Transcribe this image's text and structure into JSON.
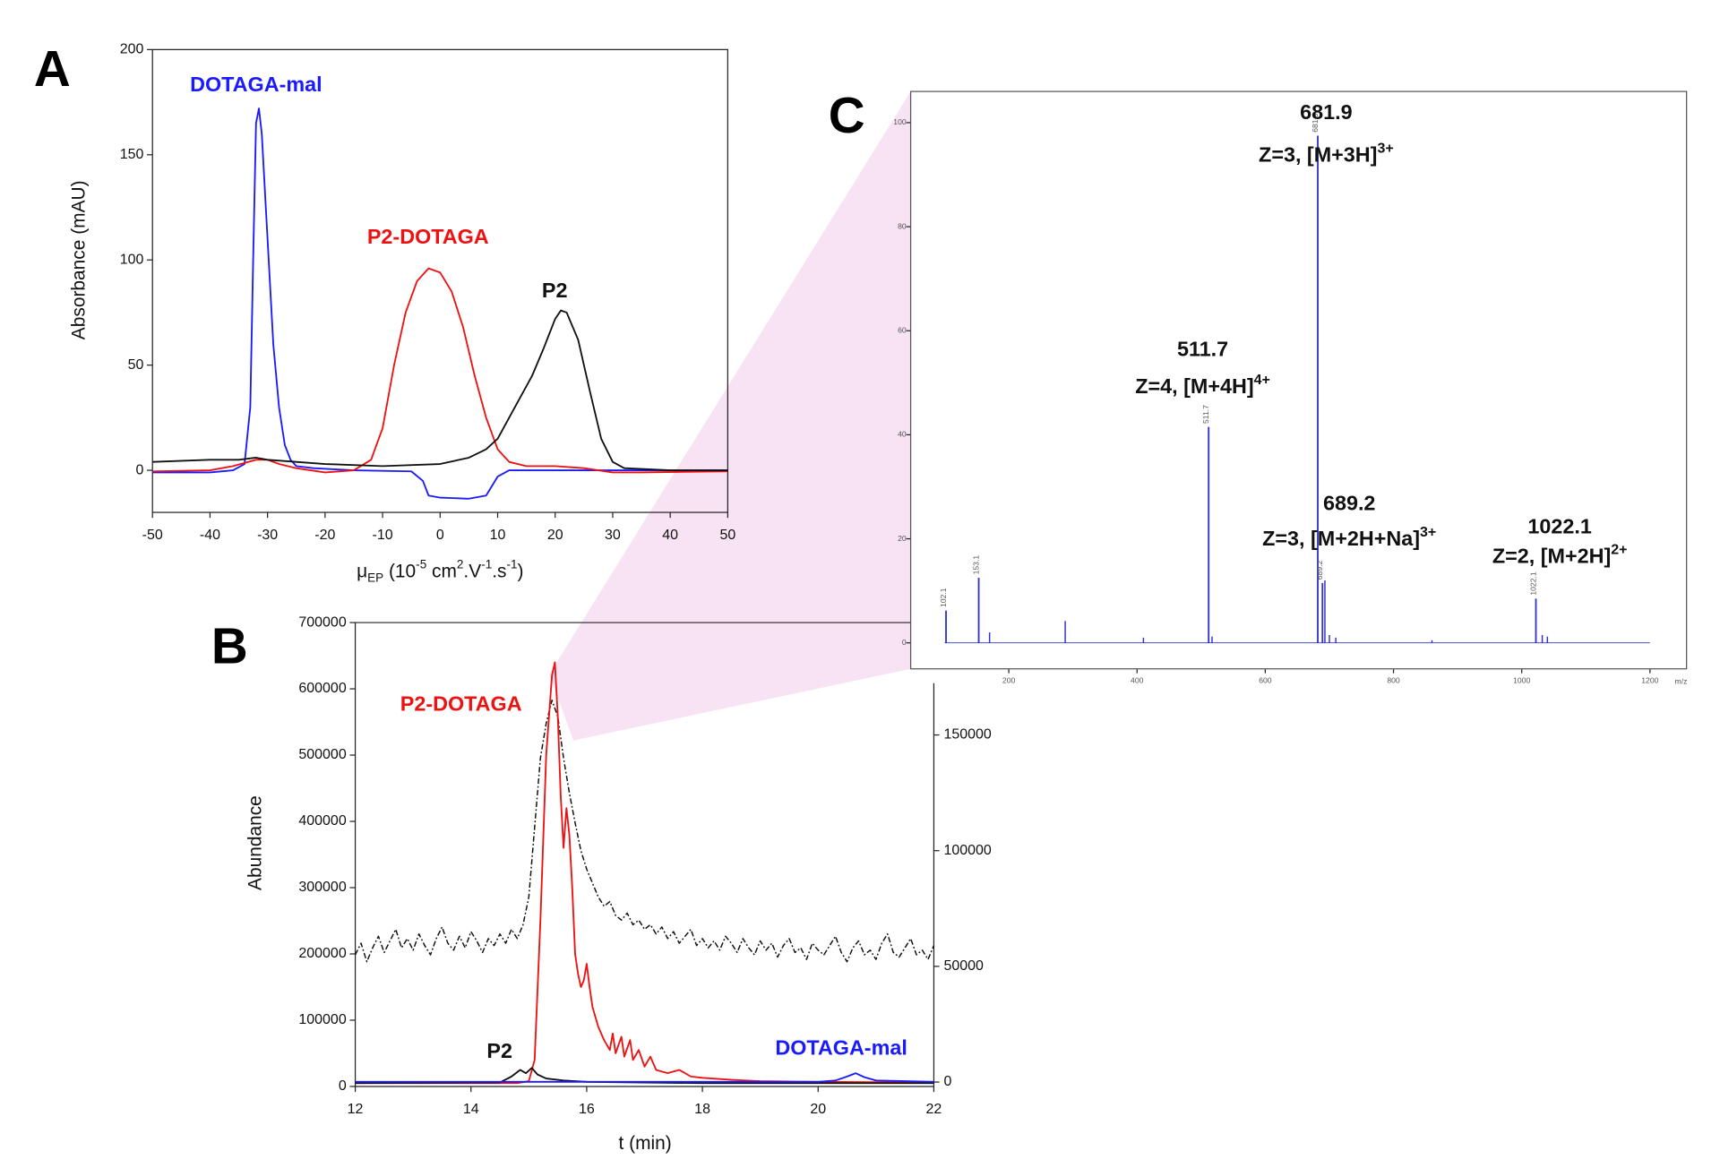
{
  "chart_data": [
    {
      "type": "line",
      "panel": "A",
      "ylabel": "Absorbance (mAU)",
      "xlabel": [
        {
          "text": "μ"
        },
        {
          "text": "EP",
          "script": "sub"
        },
        {
          "text": " (10"
        },
        {
          "text": "-5",
          "script": "super"
        },
        {
          "text": " cm"
        },
        {
          "text": "2",
          "script": "super"
        },
        {
          "text": ".V"
        },
        {
          "text": "-1",
          "script": "super"
        },
        {
          "text": ".s"
        },
        {
          "text": "-1",
          "script": "super"
        },
        {
          "text": ")"
        }
      ],
      "xlim": [
        -50,
        50
      ],
      "xticks": [
        -50,
        -40,
        -30,
        -20,
        -10,
        0,
        10,
        20,
        30,
        40,
        50
      ],
      "ylim": [
        -20,
        200
      ],
      "yticks": [
        0,
        50,
        100,
        150,
        200
      ],
      "series": [
        {
          "name": "DOTAGA-mal",
          "color": "#1a1aff",
          "x": [
            -50,
            -40,
            -36,
            -34,
            -33,
            -32.5,
            -32,
            -31.5,
            -31,
            -30,
            -29,
            -28,
            -27,
            -26,
            -25,
            -22,
            -15,
            -5,
            -3,
            -2,
            0,
            5,
            8,
            10,
            12,
            20,
            50
          ],
          "values": [
            -1,
            -1,
            0,
            3,
            30,
            100,
            165,
            172,
            160,
            110,
            60,
            30,
            12,
            5,
            2,
            1,
            0,
            -0.5,
            -5,
            -12,
            -13,
            -13.5,
            -12,
            -3,
            0,
            0,
            0
          ]
        },
        {
          "name": "P2-DOTAGA",
          "color": "#ee1111",
          "x": [
            -50,
            -40,
            -36,
            -32,
            -30,
            -28,
            -25,
            -20,
            -15,
            -12,
            -10,
            -8,
            -6,
            -4,
            -2,
            0,
            2,
            4,
            6,
            8,
            10,
            12,
            15,
            20,
            25,
            30,
            35,
            50
          ],
          "values": [
            -0.5,
            0,
            2,
            5,
            5,
            3,
            1,
            -1,
            0,
            5,
            20,
            50,
            75,
            90,
            96,
            94,
            85,
            68,
            45,
            25,
            10,
            4,
            2,
            2,
            1,
            -1,
            -1,
            -0.5
          ]
        },
        {
          "name": "P2",
          "color": "#111111",
          "x": [
            -50,
            -40,
            -35,
            -32,
            -30,
            -25,
            -20,
            -10,
            0,
            5,
            8,
            10,
            12,
            14,
            16,
            18,
            20,
            21,
            22,
            24,
            26,
            28,
            30,
            32,
            40,
            50
          ],
          "values": [
            4,
            5,
            5,
            6,
            5,
            4,
            3,
            2,
            3,
            6,
            10,
            15,
            25,
            35,
            45,
            58,
            72,
            76,
            75,
            62,
            38,
            15,
            4,
            1,
            0,
            0
          ]
        }
      ]
    },
    {
      "type": "line",
      "panel": "B",
      "ylabel": "Abundance",
      "xlabel": [
        {
          "text": "t (min)"
        }
      ],
      "xlim": [
        12,
        22
      ],
      "xticks": [
        12,
        14,
        16,
        18,
        20,
        22
      ],
      "ylim": [
        0,
        700000
      ],
      "yticks": [
        0,
        100000,
        200000,
        300000,
        400000,
        500000,
        600000,
        700000
      ],
      "y2lim": [
        0,
        200000
      ],
      "y2ticks": [
        0,
        50000,
        100000,
        150000
      ],
      "series": [
        {
          "color": "#111111",
          "axis": "y2",
          "linestyle": "dashdot",
          "x": [
            12.0,
            12.1,
            12.2,
            12.3,
            12.4,
            12.5,
            12.6,
            12.7,
            12.8,
            12.9,
            13.0,
            13.1,
            13.2,
            13.3,
            13.4,
            13.5,
            13.6,
            13.7,
            13.8,
            13.9,
            14.0,
            14.1,
            14.2,
            14.3,
            14.4,
            14.5,
            14.6,
            14.7,
            14.8,
            14.9,
            15.0,
            15.1,
            15.2,
            15.3,
            15.4,
            15.5,
            15.6,
            15.7,
            15.8,
            15.9,
            16.0,
            16.1,
            16.2,
            16.3,
            16.4,
            16.5,
            16.6,
            16.7,
            16.8,
            16.9,
            17.0,
            17.1,
            17.2,
            17.3,
            17.4,
            17.5,
            17.6,
            17.7,
            17.8,
            17.9,
            18.0,
            18.1,
            18.2,
            18.3,
            18.4,
            18.5,
            18.6,
            18.7,
            18.8,
            18.9,
            19.0,
            19.1,
            19.2,
            19.3,
            19.4,
            19.5,
            19.6,
            19.7,
            19.8,
            19.9,
            20.0,
            20.1,
            20.2,
            20.3,
            20.4,
            20.5,
            20.6,
            20.7,
            20.8,
            20.9,
            21.0,
            21.1,
            21.2,
            21.3,
            21.4,
            21.5,
            21.6,
            21.7,
            21.8,
            21.9,
            22.0
          ],
          "values": [
            55000,
            60000,
            52000,
            58000,
            63000,
            56000,
            61000,
            66000,
            58000,
            62000,
            57000,
            64000,
            59000,
            55000,
            62000,
            67000,
            60000,
            57000,
            63000,
            58000,
            65000,
            61000,
            56000,
            62000,
            59000,
            64000,
            60000,
            66000,
            62000,
            68000,
            80000,
            110000,
            140000,
            155000,
            165000,
            158000,
            140000,
            125000,
            112000,
            100000,
            92000,
            86000,
            80000,
            76000,
            78000,
            72000,
            70000,
            73000,
            68000,
            70000,
            66000,
            68000,
            64000,
            67000,
            62000,
            65000,
            60000,
            63000,
            66000,
            59000,
            62000,
            58000,
            61000,
            57000,
            63000,
            60000,
            56000,
            62000,
            58000,
            55000,
            61000,
            57000,
            60000,
            54000,
            59000,
            62000,
            56000,
            58000,
            53000,
            60000,
            57000,
            55000,
            59000,
            63000,
            56000,
            52000,
            58000,
            61000,
            55000,
            57000,
            53000,
            60000,
            64000,
            56000,
            54000,
            58000,
            62000,
            55000,
            57000,
            53000,
            59000
          ]
        },
        {
          "name": "P2-DOTAGA",
          "color": "#ee1111",
          "x": [
            12,
            14,
            14.8,
            15.0,
            15.1,
            15.2,
            15.3,
            15.4,
            15.45,
            15.5,
            15.55,
            15.6,
            15.65,
            15.7,
            15.75,
            15.8,
            15.85,
            15.9,
            15.95,
            16.0,
            16.05,
            16.1,
            16.2,
            16.3,
            16.4,
            16.45,
            16.5,
            16.6,
            16.65,
            16.75,
            16.8,
            16.9,
            17.0,
            17.1,
            17.2,
            17.4,
            17.6,
            17.8,
            18.0,
            18.5,
            19,
            20,
            22
          ],
          "values": [
            5000,
            5000,
            5000,
            8000,
            40000,
            250000,
            500000,
            620000,
            640000,
            560000,
            440000,
            360000,
            420000,
            380000,
            300000,
            200000,
            170000,
            150000,
            160000,
            185000,
            150000,
            120000,
            90000,
            70000,
            55000,
            80000,
            50000,
            75000,
            45000,
            70000,
            40000,
            55000,
            30000,
            45000,
            25000,
            20000,
            25000,
            15000,
            13000,
            10000,
            8000,
            7000,
            6000
          ]
        },
        {
          "name": "P2",
          "color": "#111111",
          "x": [
            12,
            14.5,
            14.7,
            14.85,
            14.95,
            15.05,
            15.15,
            15.3,
            15.6,
            16,
            18,
            22
          ],
          "values": [
            5000,
            6000,
            15000,
            25000,
            20000,
            28000,
            18000,
            12000,
            9000,
            7000,
            5000,
            5000
          ]
        },
        {
          "name": "DOTAGA-mal",
          "color": "#1a1aff",
          "x": [
            12,
            20,
            20.3,
            20.5,
            20.65,
            20.8,
            21,
            22
          ],
          "values": [
            7000,
            7000,
            9000,
            15000,
            20000,
            14000,
            9000,
            7000
          ]
        }
      ]
    },
    {
      "type": "stem",
      "panel": "C",
      "color": "#3333cc",
      "xlabel": [
        {
          "text": "m/z"
        }
      ],
      "xlim": [
        47,
        1257
      ],
      "xticks": [
        200,
        400,
        600,
        800,
        1000,
        1200
      ],
      "ylim": [
        -5,
        106
      ],
      "yticks": [
        0,
        20,
        40,
        60,
        80,
        100
      ],
      "peaks": {
        "x": [
          102.1,
          153.1,
          511.7,
          681.9,
          689.2,
          1022.1
        ],
        "values": [
          6.2,
          12.5,
          41.5,
          97.5,
          11.5,
          8.5
        ]
      },
      "minor_peaks": {
        "x": [
          170,
          288,
          410,
          517,
          693,
          700,
          710,
          860,
          1032,
          1040
        ],
        "values": [
          2,
          4.2,
          1,
          1.2,
          12,
          1.5,
          1,
          0.5,
          1.5,
          1.2
        ]
      },
      "annotations": [
        {
          "label": "Z=3, [M+3H]",
          "sup": "3+"
        },
        {
          "label": "Z=4, [M+4H]",
          "sup": "4+"
        },
        {
          "label": "Z=3, [M+2H+Na]",
          "sup": "3+"
        },
        {
          "label": "Z=2, [M+2H]",
          "sup": "2+"
        }
      ]
    }
  ]
}
